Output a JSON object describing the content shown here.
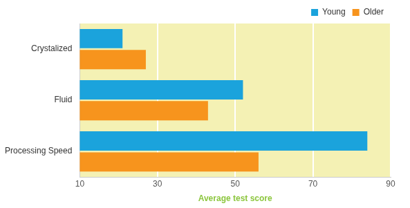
{
  "chart_data": {
    "type": "bar",
    "orientation": "horizontal",
    "x_label": "Average test score",
    "categories": [
      "Crystalized",
      "Fluid",
      "Processing Speed"
    ],
    "series": [
      {
        "name": "Young",
        "color": "#1ba3dc",
        "values": [
          21,
          52,
          84
        ]
      },
      {
        "name": "Older",
        "color": "#f7941d",
        "values": [
          27,
          43,
          56
        ]
      }
    ],
    "xlim": [
      10,
      90
    ],
    "xticks": [
      10,
      30,
      50,
      70,
      90
    ],
    "grid": true,
    "legend": "upper right"
  }
}
